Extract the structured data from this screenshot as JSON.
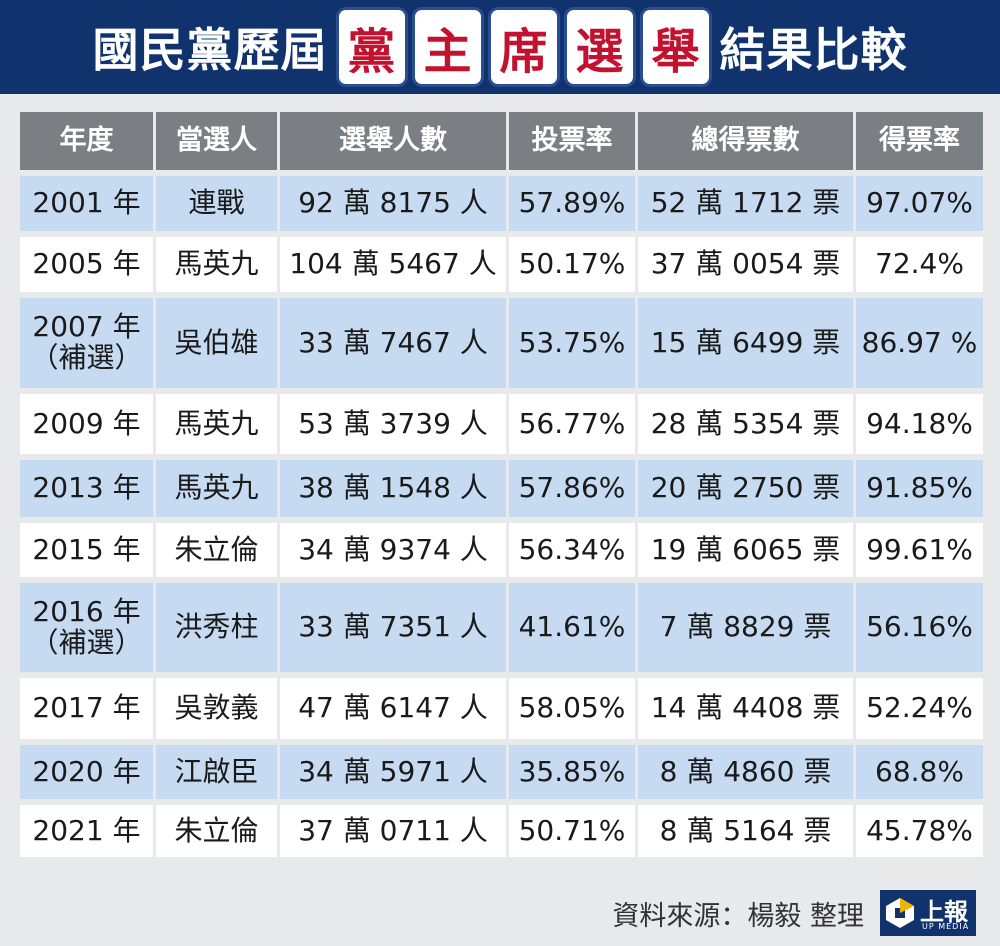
{
  "header": {
    "title_left": "國民黨歷屆",
    "title_boxed": [
      "黨",
      "主",
      "席",
      "選",
      "舉"
    ],
    "title_right": "結果比較"
  },
  "table": {
    "columns": [
      "年度",
      "當選人",
      "選舉人數",
      "投票率",
      "總得票數",
      "得票率"
    ],
    "rows": [
      [
        "2001 年",
        "連戰",
        "92 萬 8175 人",
        "57.89%",
        "52 萬 1712 票",
        "97.07%"
      ],
      [
        "2005 年",
        "馬英九",
        "104 萬 5467 人",
        "50.17%",
        "37 萬 0054 票",
        "72.4%"
      ],
      [
        "2007 年\n（補選）",
        "吳伯雄",
        "33 萬 7467 人",
        "53.75%",
        "15 萬 6499 票",
        "86.97 %"
      ],
      [
        "2009 年",
        "馬英九",
        "53 萬 3739 人",
        "56.77%",
        "28 萬 5354 票",
        "94.18%"
      ],
      [
        "2013 年",
        "馬英九",
        "38 萬 1548 人",
        "57.86%",
        "20 萬 2750 票",
        "91.85%"
      ],
      [
        "2015 年",
        "朱立倫",
        "34 萬 9374 人",
        "56.34%",
        "19 萬 6065 票",
        "99.61%"
      ],
      [
        "2016 年\n（補選）",
        "洪秀柱",
        "33 萬 7351 人",
        "41.61%",
        "7 萬 8829 票",
        "56.16%"
      ],
      [
        "2017 年",
        "吳敦義",
        "47 萬 6147 人",
        "58.05%",
        "14 萬 4408 票",
        "52.24%"
      ],
      [
        "2020 年",
        "江啟臣",
        "34 萬 5971 人",
        "35.85%",
        "8 萬 4860 票",
        "68.8%"
      ],
      [
        "2021 年",
        "朱立倫",
        "37 萬 0711 人",
        "50.71%",
        "8 萬 5164 票",
        "45.78%"
      ]
    ]
  },
  "footer": {
    "source": "資料來源：楊毅 整理",
    "logo": "上報",
    "logo_sub": "UP MEDIA"
  }
}
